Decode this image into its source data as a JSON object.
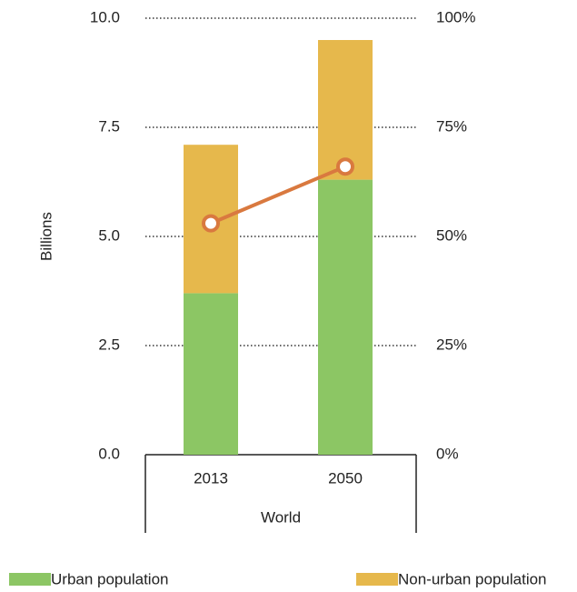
{
  "chart_data": {
    "type": "bar",
    "stacked": true,
    "ylabel": "Billions",
    "xlabel": "World",
    "categories": [
      "2013",
      "2050"
    ],
    "series": [
      {
        "name": "Urban population",
        "color": "#8cc664",
        "values": [
          3.7,
          6.3
        ]
      },
      {
        "name": "Non-urban population",
        "color": "#e6b84c",
        "values": [
          3.4,
          3.2
        ]
      },
      {
        "type": "line",
        "axis": "y2",
        "color": "#d9793f",
        "values": [
          53,
          66
        ]
      }
    ],
    "ylim": [
      0,
      10
    ],
    "yticks": [
      {
        "value": 0,
        "label": "0.0"
      },
      2.5,
      {
        "value": 5,
        "label": "5.0"
      },
      7.5,
      {
        "value": 10,
        "label": "10.0"
      }
    ],
    "y2lim": [
      0,
      100
    ],
    "y2ticks": [
      {
        "value": 0,
        "label": "0%"
      },
      {
        "value": 25,
        "label": "25%"
      },
      {
        "value": 50,
        "label": "50%"
      },
      {
        "value": 75,
        "label": "75%"
      },
      {
        "value": 100,
        "label": "100%"
      }
    ],
    "grid": true,
    "legend": "bottom"
  }
}
